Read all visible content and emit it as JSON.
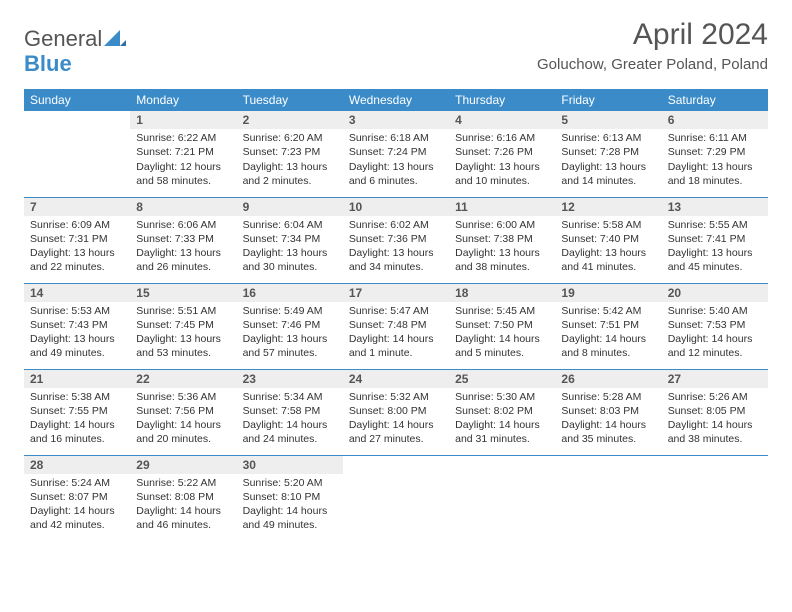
{
  "brand": {
    "general": "General",
    "blue": "Blue",
    "mark_color": "#3b8bc9"
  },
  "title": "April 2024",
  "location": "Goluchow, Greater Poland, Poland",
  "weekdays": [
    "Sunday",
    "Monday",
    "Tuesday",
    "Wednesday",
    "Thursday",
    "Friday",
    "Saturday"
  ],
  "colors": {
    "header_bg": "#3b8bc9",
    "header_fg": "#ffffff",
    "daynum_bg": "#eeeeee",
    "text": "#333333"
  },
  "weeks": [
    [
      null,
      {
        "n": "1",
        "sr": "Sunrise: 6:22 AM",
        "ss": "Sunset: 7:21 PM",
        "dl": "Daylight: 12 hours and 58 minutes."
      },
      {
        "n": "2",
        "sr": "Sunrise: 6:20 AM",
        "ss": "Sunset: 7:23 PM",
        "dl": "Daylight: 13 hours and 2 minutes."
      },
      {
        "n": "3",
        "sr": "Sunrise: 6:18 AM",
        "ss": "Sunset: 7:24 PM",
        "dl": "Daylight: 13 hours and 6 minutes."
      },
      {
        "n": "4",
        "sr": "Sunrise: 6:16 AM",
        "ss": "Sunset: 7:26 PM",
        "dl": "Daylight: 13 hours and 10 minutes."
      },
      {
        "n": "5",
        "sr": "Sunrise: 6:13 AM",
        "ss": "Sunset: 7:28 PM",
        "dl": "Daylight: 13 hours and 14 minutes."
      },
      {
        "n": "6",
        "sr": "Sunrise: 6:11 AM",
        "ss": "Sunset: 7:29 PM",
        "dl": "Daylight: 13 hours and 18 minutes."
      }
    ],
    [
      {
        "n": "7",
        "sr": "Sunrise: 6:09 AM",
        "ss": "Sunset: 7:31 PM",
        "dl": "Daylight: 13 hours and 22 minutes."
      },
      {
        "n": "8",
        "sr": "Sunrise: 6:06 AM",
        "ss": "Sunset: 7:33 PM",
        "dl": "Daylight: 13 hours and 26 minutes."
      },
      {
        "n": "9",
        "sr": "Sunrise: 6:04 AM",
        "ss": "Sunset: 7:34 PM",
        "dl": "Daylight: 13 hours and 30 minutes."
      },
      {
        "n": "10",
        "sr": "Sunrise: 6:02 AM",
        "ss": "Sunset: 7:36 PM",
        "dl": "Daylight: 13 hours and 34 minutes."
      },
      {
        "n": "11",
        "sr": "Sunrise: 6:00 AM",
        "ss": "Sunset: 7:38 PM",
        "dl": "Daylight: 13 hours and 38 minutes."
      },
      {
        "n": "12",
        "sr": "Sunrise: 5:58 AM",
        "ss": "Sunset: 7:40 PM",
        "dl": "Daylight: 13 hours and 41 minutes."
      },
      {
        "n": "13",
        "sr": "Sunrise: 5:55 AM",
        "ss": "Sunset: 7:41 PM",
        "dl": "Daylight: 13 hours and 45 minutes."
      }
    ],
    [
      {
        "n": "14",
        "sr": "Sunrise: 5:53 AM",
        "ss": "Sunset: 7:43 PM",
        "dl": "Daylight: 13 hours and 49 minutes."
      },
      {
        "n": "15",
        "sr": "Sunrise: 5:51 AM",
        "ss": "Sunset: 7:45 PM",
        "dl": "Daylight: 13 hours and 53 minutes."
      },
      {
        "n": "16",
        "sr": "Sunrise: 5:49 AM",
        "ss": "Sunset: 7:46 PM",
        "dl": "Daylight: 13 hours and 57 minutes."
      },
      {
        "n": "17",
        "sr": "Sunrise: 5:47 AM",
        "ss": "Sunset: 7:48 PM",
        "dl": "Daylight: 14 hours and 1 minute."
      },
      {
        "n": "18",
        "sr": "Sunrise: 5:45 AM",
        "ss": "Sunset: 7:50 PM",
        "dl": "Daylight: 14 hours and 5 minutes."
      },
      {
        "n": "19",
        "sr": "Sunrise: 5:42 AM",
        "ss": "Sunset: 7:51 PM",
        "dl": "Daylight: 14 hours and 8 minutes."
      },
      {
        "n": "20",
        "sr": "Sunrise: 5:40 AM",
        "ss": "Sunset: 7:53 PM",
        "dl": "Daylight: 14 hours and 12 minutes."
      }
    ],
    [
      {
        "n": "21",
        "sr": "Sunrise: 5:38 AM",
        "ss": "Sunset: 7:55 PM",
        "dl": "Daylight: 14 hours and 16 minutes."
      },
      {
        "n": "22",
        "sr": "Sunrise: 5:36 AM",
        "ss": "Sunset: 7:56 PM",
        "dl": "Daylight: 14 hours and 20 minutes."
      },
      {
        "n": "23",
        "sr": "Sunrise: 5:34 AM",
        "ss": "Sunset: 7:58 PM",
        "dl": "Daylight: 14 hours and 24 minutes."
      },
      {
        "n": "24",
        "sr": "Sunrise: 5:32 AM",
        "ss": "Sunset: 8:00 PM",
        "dl": "Daylight: 14 hours and 27 minutes."
      },
      {
        "n": "25",
        "sr": "Sunrise: 5:30 AM",
        "ss": "Sunset: 8:02 PM",
        "dl": "Daylight: 14 hours and 31 minutes."
      },
      {
        "n": "26",
        "sr": "Sunrise: 5:28 AM",
        "ss": "Sunset: 8:03 PM",
        "dl": "Daylight: 14 hours and 35 minutes."
      },
      {
        "n": "27",
        "sr": "Sunrise: 5:26 AM",
        "ss": "Sunset: 8:05 PM",
        "dl": "Daylight: 14 hours and 38 minutes."
      }
    ],
    [
      {
        "n": "28",
        "sr": "Sunrise: 5:24 AM",
        "ss": "Sunset: 8:07 PM",
        "dl": "Daylight: 14 hours and 42 minutes."
      },
      {
        "n": "29",
        "sr": "Sunrise: 5:22 AM",
        "ss": "Sunset: 8:08 PM",
        "dl": "Daylight: 14 hours and 46 minutes."
      },
      {
        "n": "30",
        "sr": "Sunrise: 5:20 AM",
        "ss": "Sunset: 8:10 PM",
        "dl": "Daylight: 14 hours and 49 minutes."
      },
      null,
      null,
      null,
      null
    ]
  ]
}
